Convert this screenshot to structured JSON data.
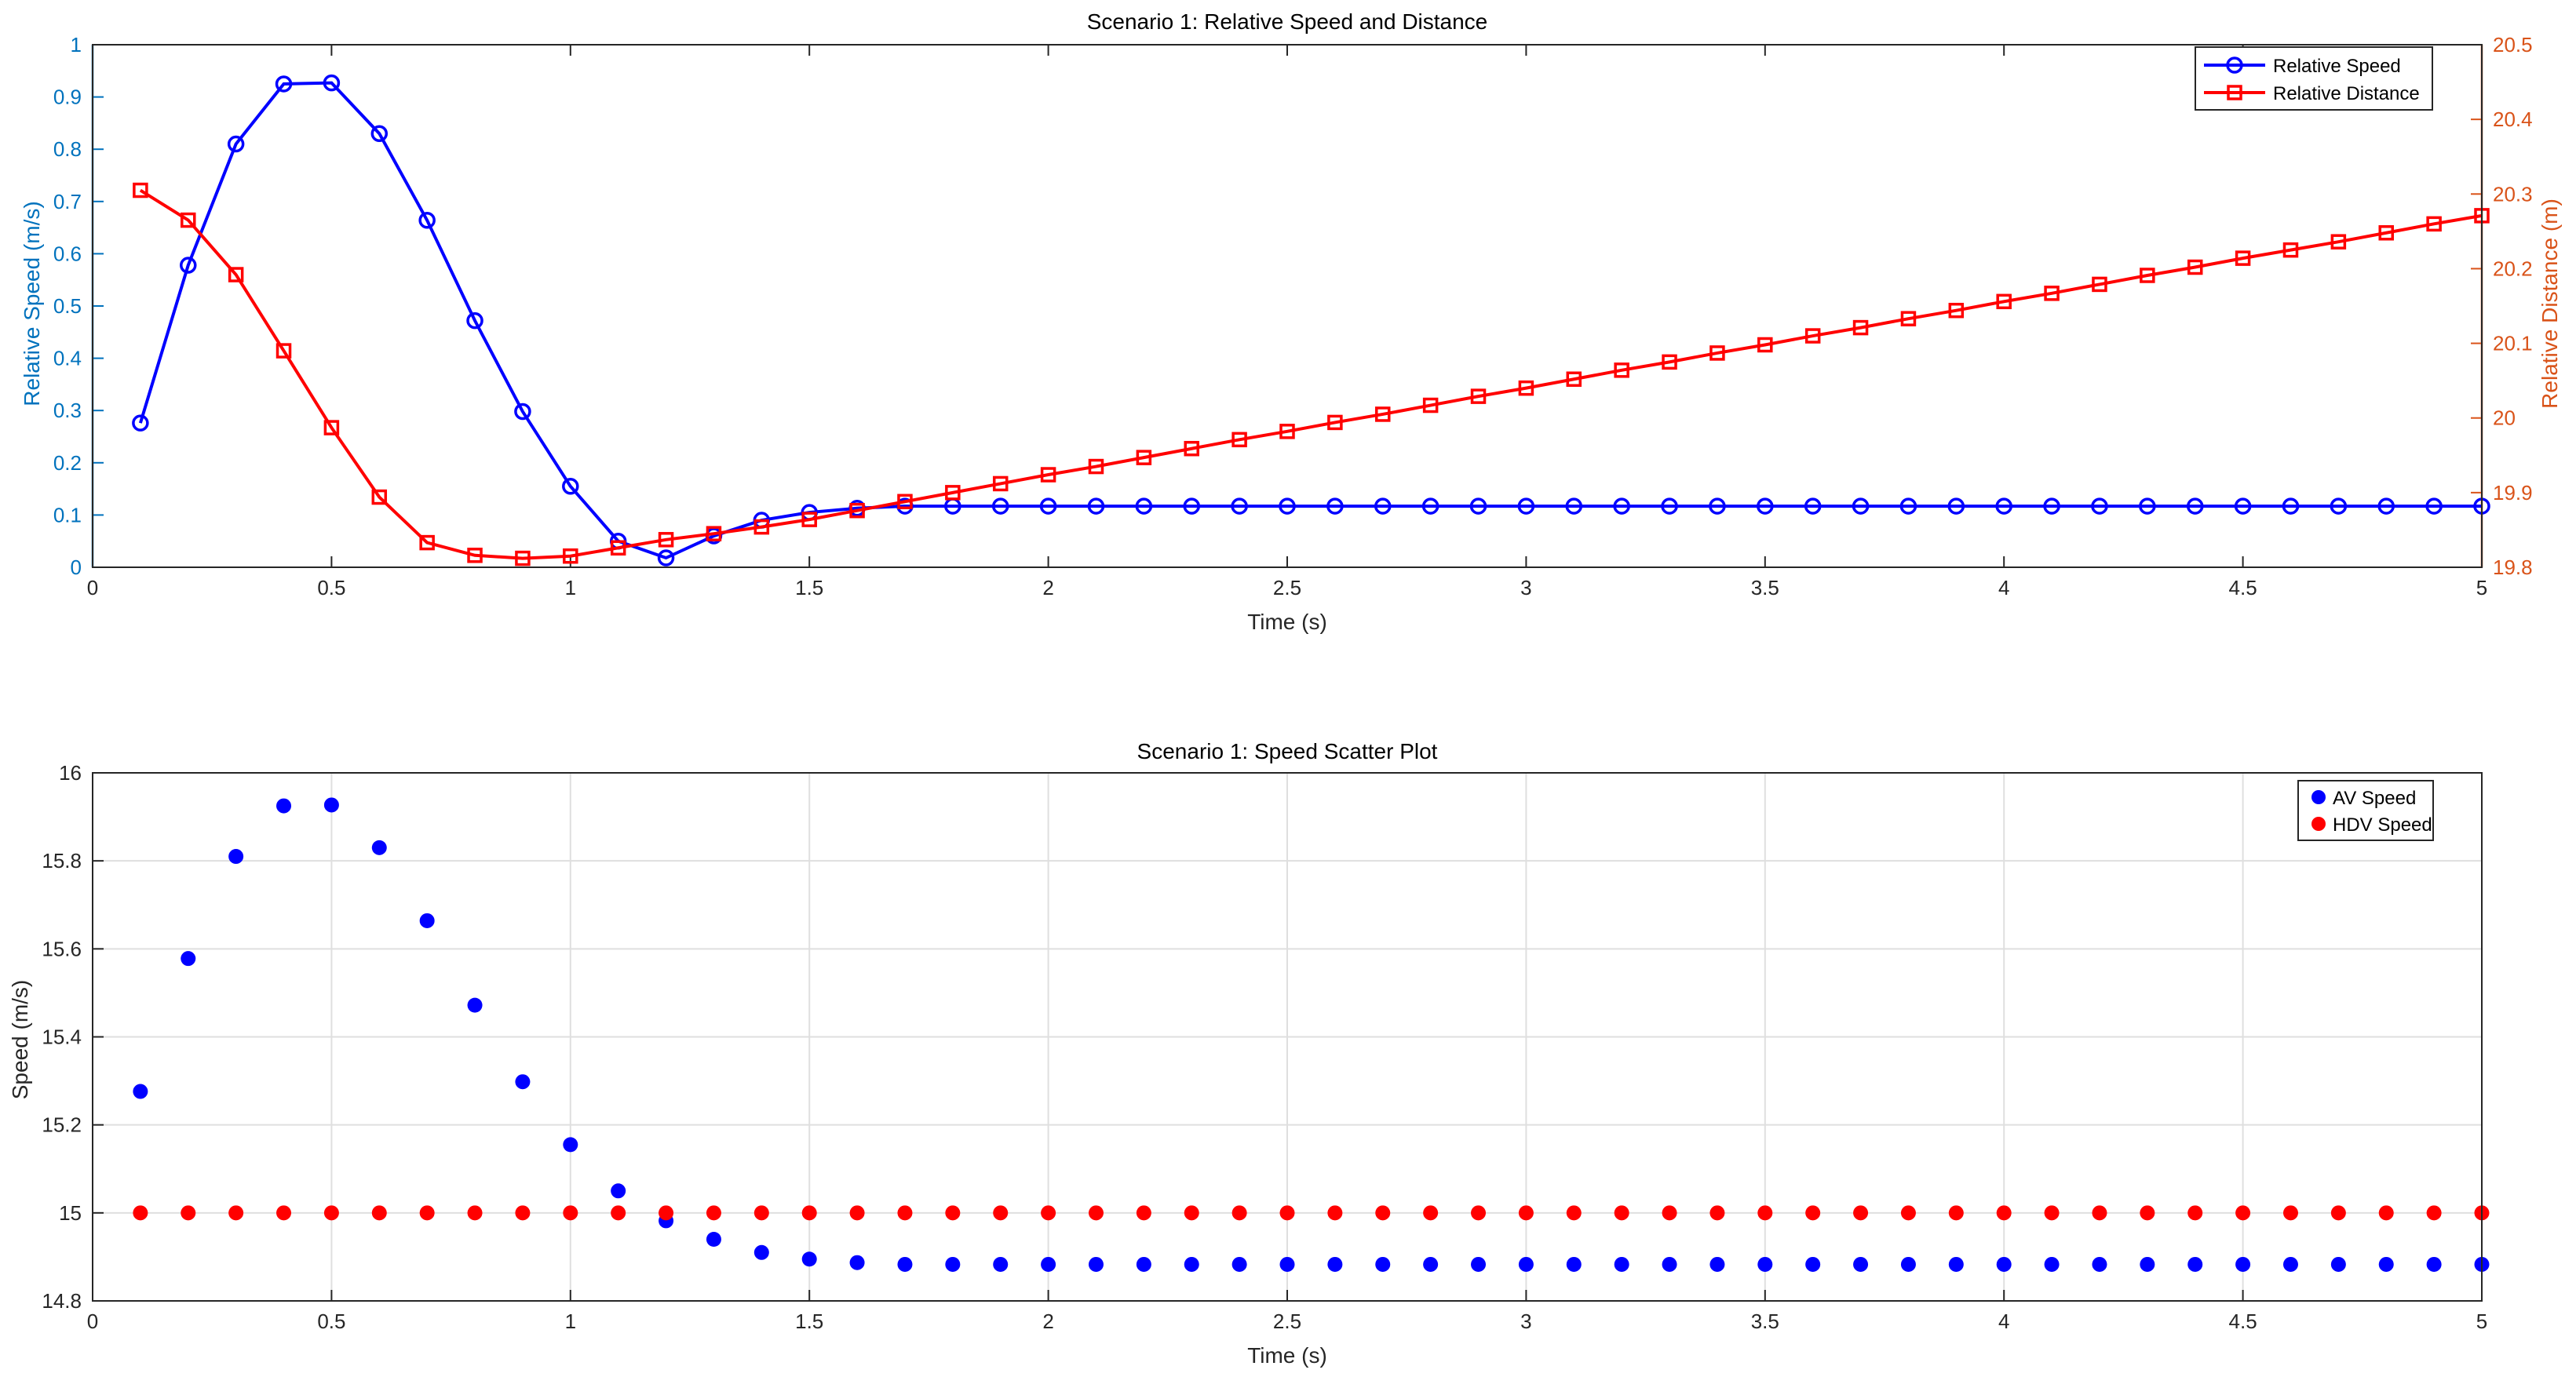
{
  "chart_data": [
    {
      "type": "line",
      "title": "Scenario 1: Relative Speed and Distance",
      "xlabel": "Time (s)",
      "ylabel_left": "Relative Speed (m/s)",
      "ylabel_right": "Relative Distance (m)",
      "xlim": [
        0,
        5
      ],
      "ylim_left": [
        0,
        1
      ],
      "ylim_right": [
        19.8,
        20.5
      ],
      "xticks": [
        "0",
        "0.5",
        "1",
        "1.5",
        "2",
        "2.5",
        "3",
        "3.5",
        "4",
        "4.5",
        "5"
      ],
      "yticks_left": [
        "0",
        "0.1",
        "0.2",
        "0.3",
        "0.4",
        "0.5",
        "0.6",
        "0.7",
        "0.8",
        "0.9",
        "1"
      ],
      "yticks_right": [
        "19.8",
        "19.9",
        "20",
        "20.1",
        "20.2",
        "20.3",
        "20.4",
        "20.5"
      ],
      "grid": false,
      "legend_position": "top-right",
      "x": [
        0.1,
        0.2,
        0.3,
        0.4,
        0.5,
        0.6,
        0.7,
        0.8,
        0.9,
        1.0,
        1.1,
        1.2,
        1.3,
        1.4,
        1.5,
        1.6,
        1.7,
        1.8,
        1.9,
        2.0,
        2.1,
        2.2,
        2.3,
        2.4,
        2.5,
        2.6,
        2.7,
        2.8,
        2.9,
        3.0,
        3.1,
        3.2,
        3.3,
        3.4,
        3.5,
        3.6,
        3.7,
        3.8,
        3.9,
        4.0,
        4.1,
        4.2,
        4.3,
        4.4,
        4.5,
        4.6,
        4.7,
        4.8,
        4.9,
        5.0
      ],
      "series": [
        {
          "name": "Relative Speed",
          "axis": "left",
          "color": "#0000ff",
          "marker": "circle",
          "values": [
            0.276,
            0.578,
            0.81,
            0.925,
            0.927,
            0.83,
            0.664,
            0.472,
            0.298,
            0.155,
            0.05,
            0.018,
            0.06,
            0.09,
            0.105,
            0.113,
            0.117,
            0.117,
            0.117,
            0.117,
            0.117,
            0.117,
            0.117,
            0.117,
            0.117,
            0.117,
            0.117,
            0.117,
            0.117,
            0.117,
            0.117,
            0.117,
            0.117,
            0.117,
            0.117,
            0.117,
            0.117,
            0.117,
            0.117,
            0.117,
            0.117,
            0.117,
            0.117,
            0.117,
            0.117,
            0.117,
            0.117,
            0.117,
            0.117,
            0.117
          ]
        },
        {
          "name": "Relative Distance",
          "axis": "right",
          "color": "#ff0000",
          "marker": "square",
          "values": [
            20.305,
            20.265,
            20.192,
            20.09,
            19.987,
            19.894,
            19.833,
            19.816,
            19.812,
            19.815,
            19.826,
            19.837,
            19.845,
            19.854,
            19.864,
            19.876,
            19.888,
            19.9,
            19.912,
            19.924,
            19.935,
            19.947,
            19.959,
            19.971,
            19.982,
            19.994,
            20.005,
            20.017,
            20.029,
            20.04,
            20.052,
            20.064,
            20.075,
            20.087,
            20.098,
            20.11,
            20.121,
            20.133,
            20.144,
            20.156,
            20.167,
            20.179,
            20.191,
            20.202,
            20.214,
            20.225,
            20.236,
            20.248,
            20.26,
            20.271
          ]
        }
      ]
    },
    {
      "type": "scatter",
      "title": "Scenario 1: Speed Scatter Plot",
      "xlabel": "Time (s)",
      "ylabel": "Speed (m/s)",
      "xlim": [
        0,
        5
      ],
      "ylim": [
        14.8,
        16
      ],
      "xticks": [
        "0",
        "0.5",
        "1",
        "1.5",
        "2",
        "2.5",
        "3",
        "3.5",
        "4",
        "4.5",
        "5"
      ],
      "yticks": [
        "14.8",
        "15",
        "15.2",
        "15.4",
        "15.6",
        "15.8",
        "16"
      ],
      "grid": true,
      "legend_position": "top-right",
      "x": [
        0.1,
        0.2,
        0.3,
        0.4,
        0.5,
        0.6,
        0.7,
        0.8,
        0.9,
        1.0,
        1.1,
        1.2,
        1.3,
        1.4,
        1.5,
        1.6,
        1.7,
        1.8,
        1.9,
        2.0,
        2.1,
        2.2,
        2.3,
        2.4,
        2.5,
        2.6,
        2.7,
        2.8,
        2.9,
        3.0,
        3.1,
        3.2,
        3.3,
        3.4,
        3.5,
        3.6,
        3.7,
        3.8,
        3.9,
        4.0,
        4.1,
        4.2,
        4.3,
        4.4,
        4.5,
        4.6,
        4.7,
        4.8,
        4.9,
        5.0
      ],
      "series": [
        {
          "name": "AV Speed",
          "color": "#0000ff",
          "values": [
            15.276,
            15.578,
            15.81,
            15.925,
            15.927,
            15.83,
            15.664,
            15.472,
            15.298,
            15.155,
            15.05,
            14.982,
            14.94,
            14.91,
            14.895,
            14.887,
            14.883,
            14.883,
            14.883,
            14.883,
            14.883,
            14.883,
            14.883,
            14.883,
            14.883,
            14.883,
            14.883,
            14.883,
            14.883,
            14.883,
            14.883,
            14.883,
            14.883,
            14.883,
            14.883,
            14.883,
            14.883,
            14.883,
            14.883,
            14.883,
            14.883,
            14.883,
            14.883,
            14.883,
            14.883,
            14.883,
            14.883,
            14.883,
            14.883,
            14.883
          ]
        },
        {
          "name": "HDV Speed",
          "color": "#ff0000",
          "values": [
            15,
            15,
            15,
            15,
            15,
            15,
            15,
            15,
            15,
            15,
            15,
            15,
            15,
            15,
            15,
            15,
            15,
            15,
            15,
            15,
            15,
            15,
            15,
            15,
            15,
            15,
            15,
            15,
            15,
            15,
            15,
            15,
            15,
            15,
            15,
            15,
            15,
            15,
            15,
            15,
            15,
            15,
            15,
            15,
            15,
            15,
            15,
            15,
            15,
            15
          ]
        }
      ]
    }
  ],
  "colors": {
    "left_axis": "#0072bd",
    "right_axis": "#d95319",
    "grid": "#dfdfdf",
    "axis": "#262626"
  }
}
